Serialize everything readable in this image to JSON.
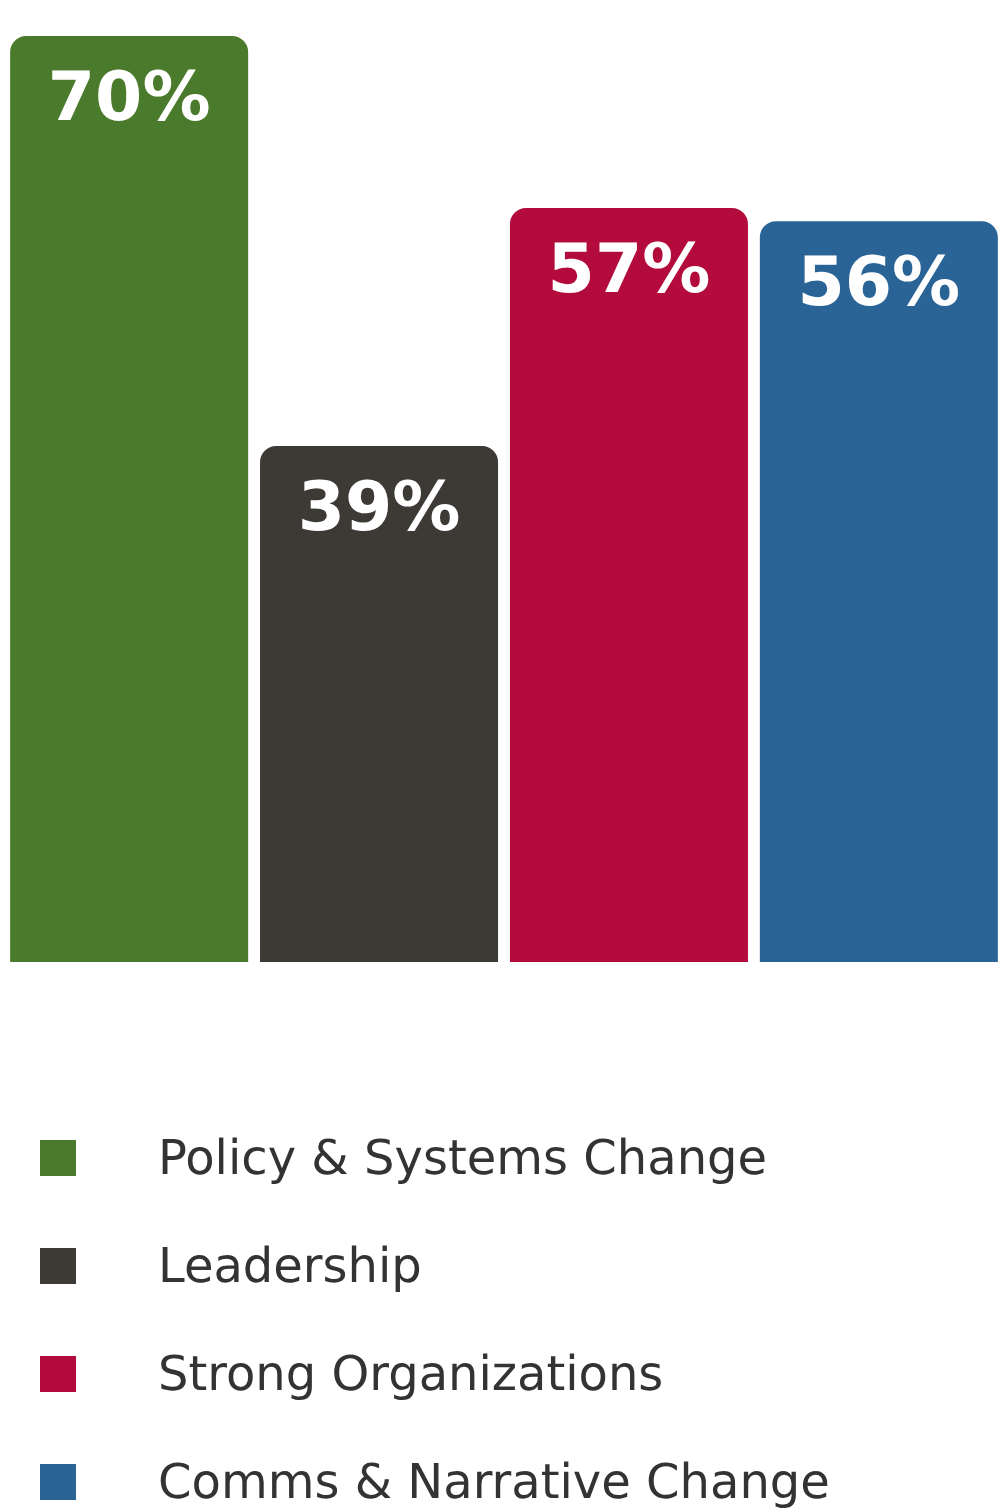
{
  "chart_data": {
    "type": "bar",
    "categories": [
      null
    ],
    "series": [
      {
        "name": "Policy & Systems Change",
        "color": "#4a7a2b",
        "values": [
          70
        ],
        "value_labels": [
          "70%"
        ]
      },
      {
        "name": "Leadership",
        "color": "#3d3a35",
        "values": [
          39
        ],
        "value_labels": [
          "39%"
        ]
      },
      {
        "name": "Strong Organizations",
        "color": "#b30b3b",
        "values": [
          57
        ],
        "value_labels": [
          "57%"
        ]
      },
      {
        "name": "Comms & Narrative Change",
        "color": "#2a6395",
        "values": [
          56
        ],
        "value_labels": [
          "56%"
        ]
      }
    ],
    "legend": "bottom left"
  }
}
